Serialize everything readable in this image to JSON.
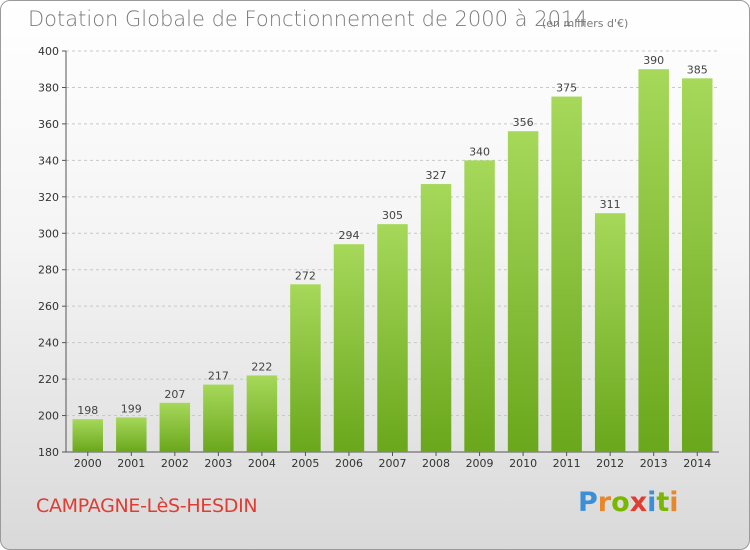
{
  "header": {
    "title": "Dotation Globale de Fonctionnement de 2000 à 2014",
    "unit": "(en milliers d'€)"
  },
  "footer": {
    "commune": "CAMPAGNE-LèS-HESDIN",
    "logo_letters": [
      "P",
      "r",
      "o",
      "x",
      "i",
      "t",
      "i"
    ],
    "logo_colors": [
      "#3a8fd6",
      "#e8862a",
      "#7ab800",
      "#e03c32",
      "#3a8fd6",
      "#7ab800",
      "#e8862a"
    ]
  },
  "colors": {
    "bar_light": "#a6d85a",
    "bar_dark": "#6aa71c",
    "axis": "#555555",
    "grid": "#c8c8c8"
  },
  "chart_data": {
    "type": "bar",
    "title": "Dotation Globale de Fonctionnement de 2000 à 2014",
    "subtitle": "(en milliers d'€)",
    "categories": [
      "2000",
      "2001",
      "2002",
      "2003",
      "2004",
      "2005",
      "2006",
      "2007",
      "2008",
      "2009",
      "2010",
      "2011",
      "2012",
      "2013",
      "2014"
    ],
    "values": [
      198,
      199,
      207,
      217,
      222,
      272,
      294,
      305,
      327,
      340,
      356,
      375,
      311,
      390,
      385
    ],
    "ylim": [
      180,
      400
    ],
    "yticks": [
      180,
      200,
      220,
      240,
      260,
      280,
      300,
      320,
      340,
      360,
      380,
      400
    ],
    "grid": true,
    "data_labels": true
  }
}
